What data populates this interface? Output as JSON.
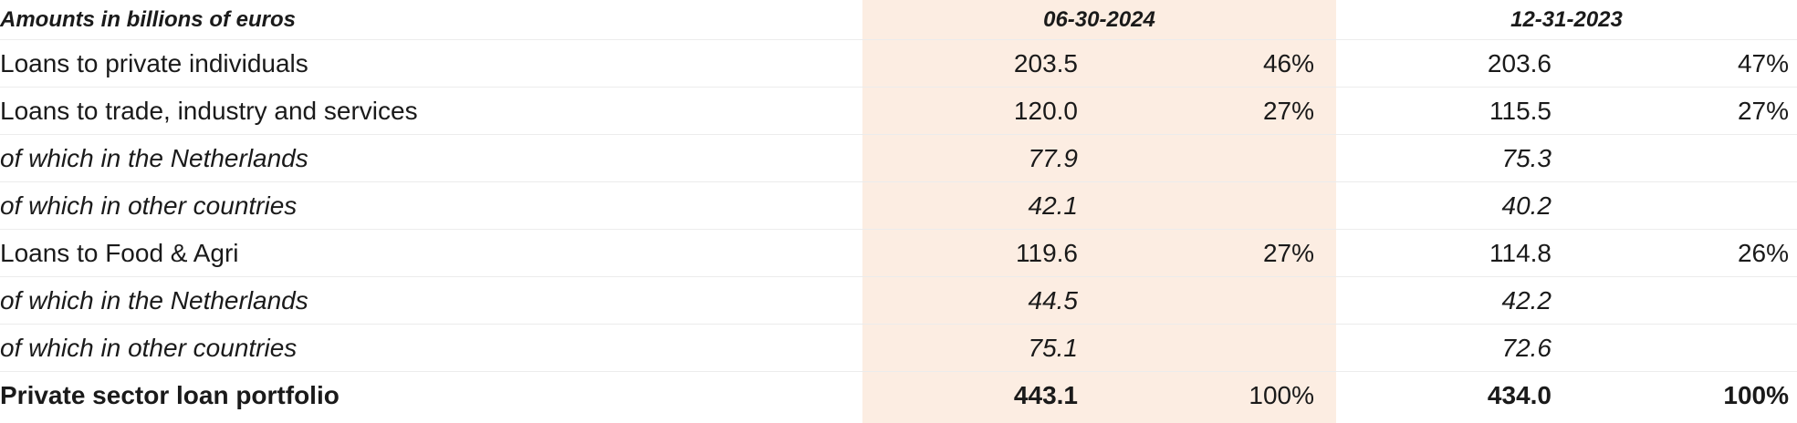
{
  "table": {
    "header": {
      "label": "Amounts in billions of euros",
      "date1": "06-30-2024",
      "date2": "12-31-2023"
    },
    "rows": [
      {
        "label": "Loans to private individuals",
        "v1": "203.5",
        "p1": "46%",
        "v2": "203.6",
        "p2": "47%"
      },
      {
        "label": "Loans to trade, industry and services",
        "v1": "120.0",
        "p1": "27%",
        "v2": "115.5",
        "p2": "27%"
      },
      {
        "label": "of which in the Netherlands",
        "v1": "77.9",
        "p1": "",
        "v2": "75.3",
        "p2": ""
      },
      {
        "label": "of which in other countries",
        "v1": "42.1",
        "p1": "",
        "v2": "40.2",
        "p2": ""
      },
      {
        "label": "Loans to Food & Agri",
        "v1": "119.6",
        "p1": "27%",
        "v2": "114.8",
        "p2": "26%"
      },
      {
        "label": "of which in the Netherlands",
        "v1": "44.5",
        "p1": "",
        "v2": "42.2",
        "p2": ""
      },
      {
        "label": "of which in other countries",
        "v1": "75.1",
        "p1": "",
        "v2": "72.6",
        "p2": ""
      },
      {
        "label": "Private sector loan portfolio",
        "v1": "443.1",
        "p1": "100%",
        "v2": "434.0",
        "p2": "100%"
      }
    ],
    "colors": {
      "highlight_column": "#fcede2",
      "row_divider": "#ececec",
      "text": "#1a1a1a"
    }
  }
}
